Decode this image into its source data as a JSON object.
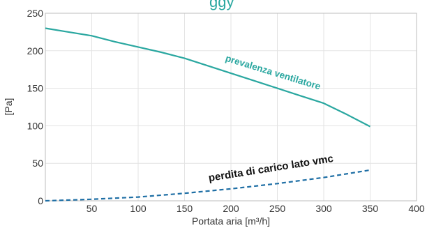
{
  "header_fragment": "ggy",
  "chart_data": {
    "type": "line",
    "xlabel": "Portata aria [m³/h]",
    "ylabel": "[Pa]",
    "xlim": [
      0,
      400
    ],
    "ylim": [
      0,
      250
    ],
    "x_ticks": [
      50,
      100,
      150,
      200,
      250,
      300,
      350,
      400
    ],
    "y_ticks": [
      0,
      50,
      100,
      150,
      200,
      250
    ],
    "grid": true,
    "series": [
      {
        "name": "prevalenza ventilatore",
        "color": "#2aa7a0",
        "style": "solid",
        "x": [
          0,
          25,
          50,
          75,
          100,
          125,
          150,
          175,
          200,
          225,
          250,
          275,
          300,
          325,
          350
        ],
        "y": [
          230,
          225,
          220,
          212,
          205,
          198,
          190,
          180,
          170,
          160,
          150,
          140,
          130,
          115,
          99
        ]
      },
      {
        "name": "perdita di carico lato vmc",
        "color": "#1f6fa5",
        "style": "dashed",
        "x": [
          0,
          50,
          100,
          150,
          200,
          250,
          300,
          350
        ],
        "y": [
          0,
          2,
          5,
          10,
          16,
          23,
          31,
          41
        ]
      }
    ]
  }
}
